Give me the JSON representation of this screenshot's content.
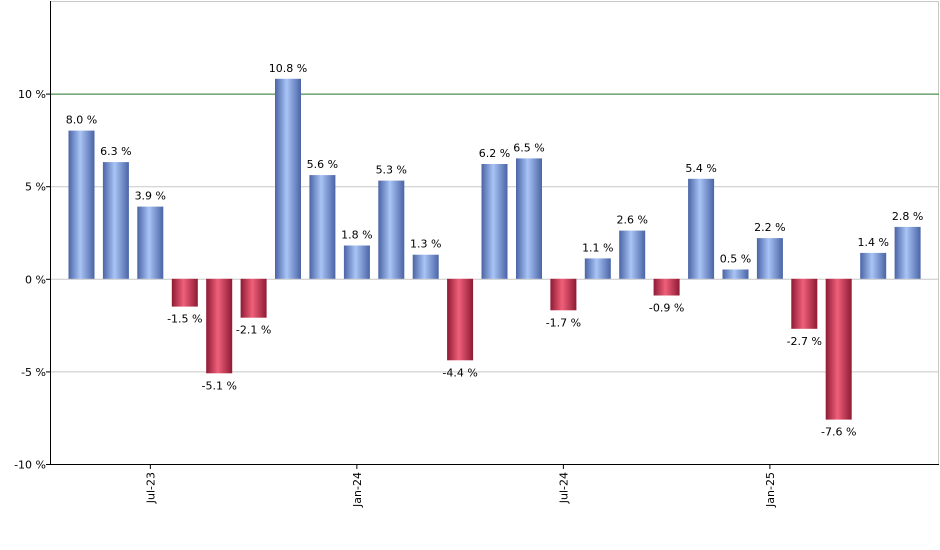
{
  "chart_data": {
    "type": "bar",
    "title": "",
    "xlabel": "",
    "ylabel": "",
    "ylim": [
      -10,
      15
    ],
    "yticks": [
      -10,
      -5,
      0,
      5,
      10
    ],
    "ytick_labels": [
      "-10 %",
      "-5 %",
      "0 %",
      "5 %",
      "10 %"
    ],
    "reference_line": {
      "value": 10,
      "color": "#2e7d32"
    },
    "grid": true,
    "values": [
      8.0,
      6.3,
      3.9,
      -1.5,
      -5.1,
      -2.1,
      10.8,
      5.6,
      1.8,
      5.3,
      1.3,
      -4.4,
      6.2,
      6.5,
      -1.7,
      1.1,
      2.6,
      -0.9,
      5.4,
      0.5,
      2.2,
      -2.7,
      -7.6,
      1.4,
      2.8
    ],
    "value_labels": [
      "8.0 %",
      "6.3 %",
      "3.9 %",
      "-1.5 %",
      "-5.1 %",
      "-2.1 %",
      "10.8 %",
      "5.6 %",
      "1.8 %",
      "5.3 %",
      "1.3 %",
      "-4.4 %",
      "6.2 %",
      "6.5 %",
      "-1.7 %",
      "1.1 %",
      "2.6 %",
      "-0.9 %",
      "5.4 %",
      "0.5 %",
      "2.2 %",
      "-2.7 %",
      "-7.6 %",
      "1.4 %",
      "2.8 %"
    ],
    "x_tick_labels": [
      {
        "bar_index": 2,
        "label": "Jul-23"
      },
      {
        "bar_index": 8,
        "label": "Jan-24"
      },
      {
        "bar_index": 14,
        "label": "Jul-24"
      },
      {
        "bar_index": 20,
        "label": "Jan-25"
      }
    ],
    "colors": {
      "positive_light": "#a9c4f5",
      "positive_dark": "#4a64a6",
      "negative_light": "#f0607a",
      "negative_dark": "#8e1a34",
      "grid": "#c8c8c8",
      "axis": "#000000"
    }
  }
}
